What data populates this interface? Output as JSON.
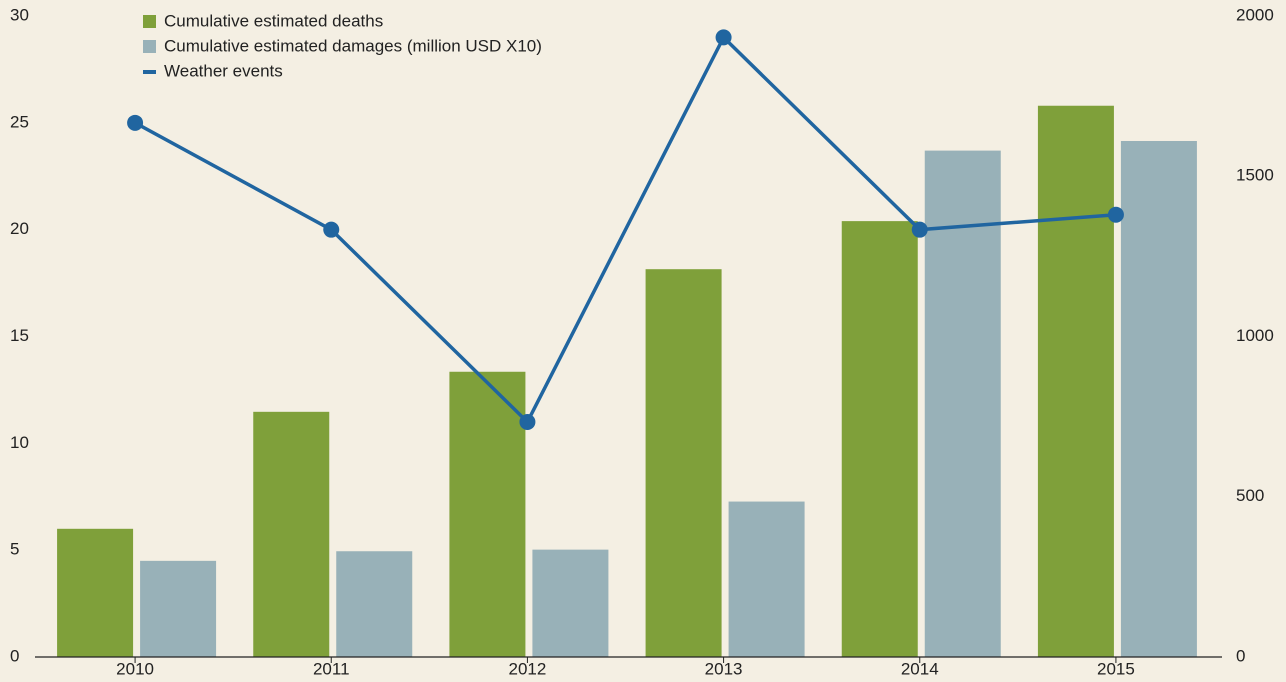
{
  "chart_data": {
    "type": "combo",
    "categories": [
      "2010",
      "2011",
      "2012",
      "2013",
      "2014",
      "2015"
    ],
    "series": [
      {
        "name": "Cumulative estimated deaths",
        "type": "bar",
        "axis": "y2",
        "color": "#7fa03a",
        "values": [
          400,
          765,
          890,
          1210,
          1360,
          1720
        ]
      },
      {
        "name": "Cumulative estimated damages (million USD X10)",
        "type": "bar",
        "axis": "y2",
        "color": "#98b1b8",
        "values": [
          300,
          330,
          335,
          485,
          1580,
          1610
        ]
      },
      {
        "name": "Weather events",
        "type": "line",
        "axis": "y",
        "color": "#2065a0",
        "values": [
          25,
          20,
          11,
          29,
          20,
          20.7
        ]
      }
    ],
    "ylim": [
      0,
      30
    ],
    "yticks": [
      0,
      5,
      10,
      15,
      20,
      25,
      30
    ],
    "y2lim": [
      0,
      2000
    ],
    "y2ticks": [
      0,
      500,
      1000,
      1500,
      2000
    ],
    "grid": false,
    "legend": "top-left"
  }
}
